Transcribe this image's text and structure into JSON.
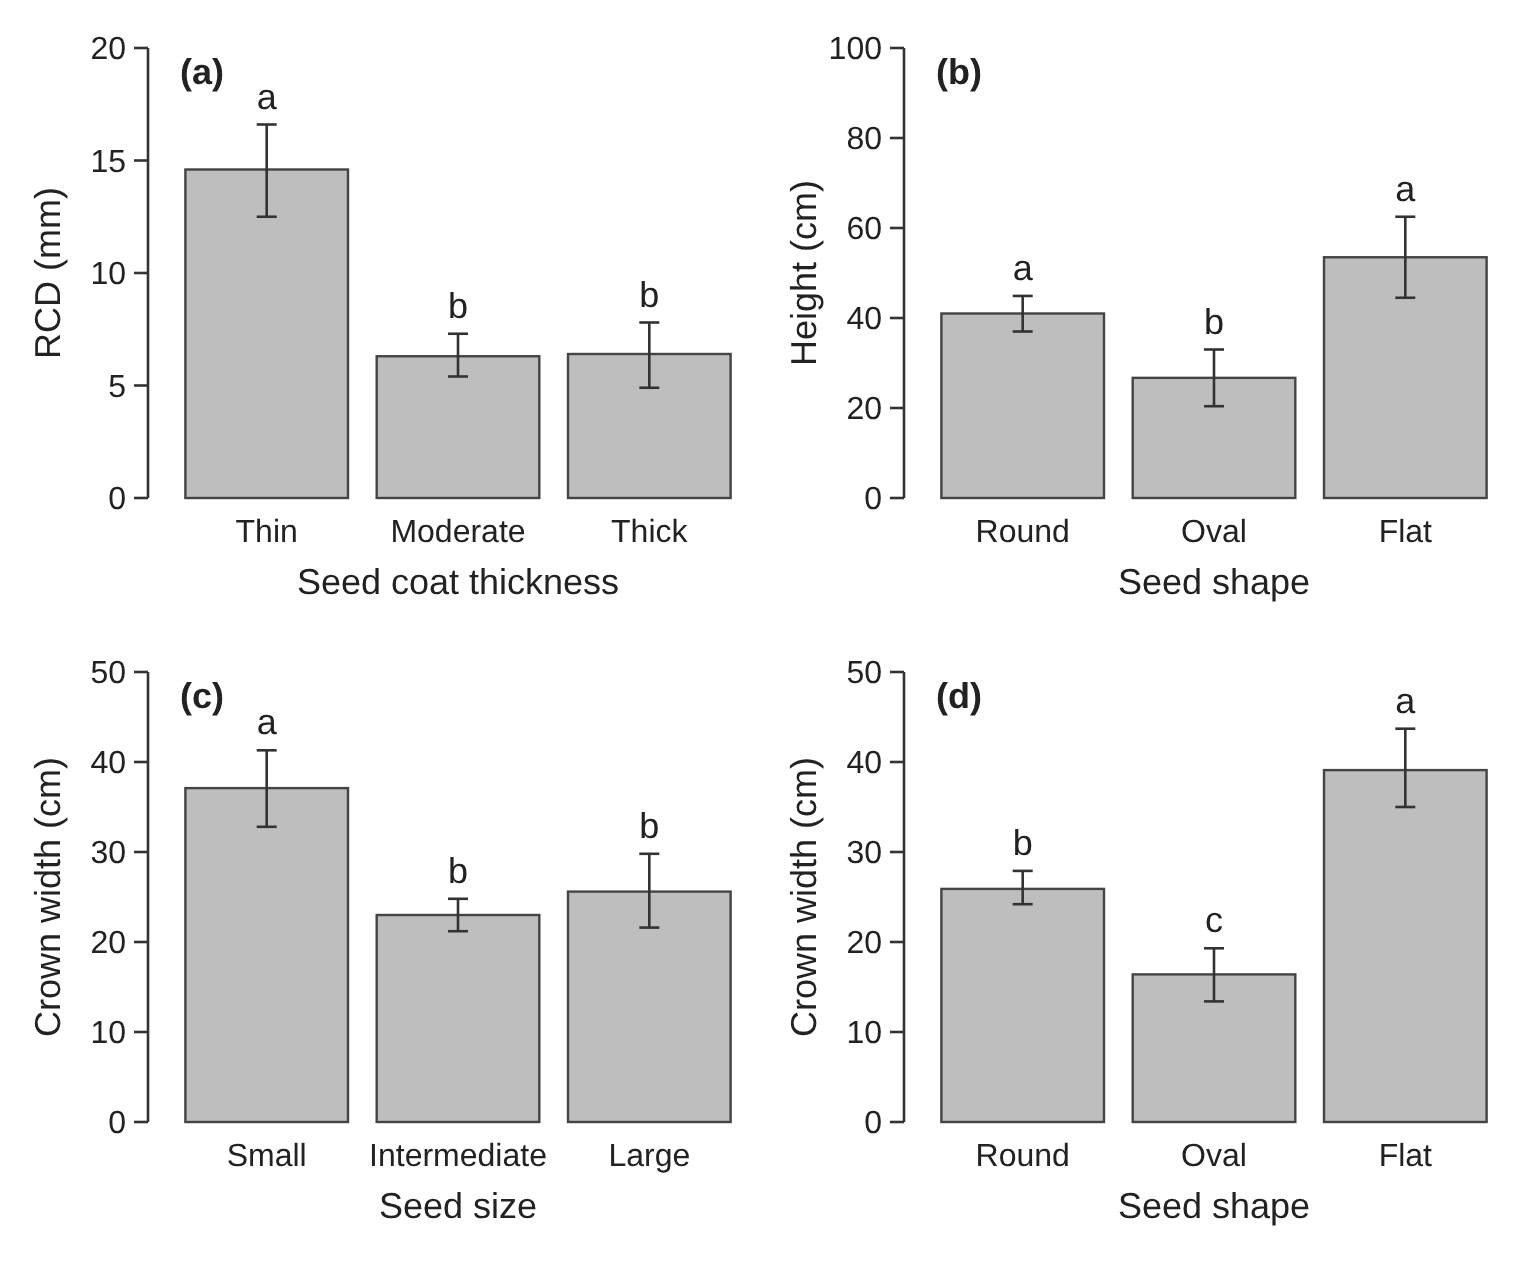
{
  "chart_data": [
    {
      "type": "bar",
      "title": "(a)",
      "xlabel": "Seed coat thickness",
      "ylabel": "RCD (mm)",
      "categories": [
        "Thin",
        "Moderate",
        "Thick"
      ],
      "values": [
        14.6,
        6.3,
        6.4
      ],
      "errors": [
        [
          12.5,
          16.6
        ],
        [
          5.4,
          7.3
        ],
        [
          4.9,
          7.8
        ]
      ],
      "color": "#bebebe",
      "ylim": [
        0,
        20
      ],
      "yticks": [
        0,
        5,
        10,
        15,
        20
      ],
      "annotations": [
        {
          "text": "a",
          "x": "Thin",
          "y": 16.6
        },
        {
          "text": "b",
          "x": "Moderate",
          "y": 7.3
        },
        {
          "text": "b",
          "x": "Thick",
          "y": 7.8
        }
      ]
    },
    {
      "type": "bar",
      "title": "(b)",
      "xlabel": "Seed shape",
      "ylabel": "Height (cm)",
      "categories": [
        "Round",
        "Oval",
        "Flat"
      ],
      "values": [
        41,
        26.7,
        53.5
      ],
      "errors": [
        [
          37,
          44.9
        ],
        [
          20.4,
          33
        ],
        [
          44.5,
          62.5
        ]
      ],
      "color": "#bebebe",
      "ylim": [
        0,
        100
      ],
      "yticks": [
        0,
        20,
        40,
        60,
        80,
        100
      ],
      "annotations": [
        {
          "text": "a",
          "x": "Round",
          "y": 44.9
        },
        {
          "text": "b",
          "x": "Oval",
          "y": 33
        },
        {
          "text": "a",
          "x": "Flat",
          "y": 62.5
        }
      ]
    },
    {
      "type": "bar",
      "title": "(c)",
      "xlabel": "Seed size",
      "ylabel": "Crown width (cm)",
      "categories": [
        "Small",
        "Intermediate",
        "Large"
      ],
      "values": [
        37.1,
        23,
        25.6
      ],
      "errors": [
        [
          32.8,
          41.3
        ],
        [
          21.2,
          24.8
        ],
        [
          21.6,
          29.8
        ]
      ],
      "color": "#bebebe",
      "ylim": [
        0,
        50
      ],
      "yticks": [
        0,
        10,
        20,
        30,
        40,
        50
      ],
      "annotations": [
        {
          "text": "a",
          "x": "Small",
          "y": 41.3
        },
        {
          "text": "b",
          "x": "Intermediate",
          "y": 24.8
        },
        {
          "text": "b",
          "x": "Large",
          "y": 29.8
        }
      ]
    },
    {
      "type": "bar",
      "title": "(d)",
      "xlabel": "Seed shape",
      "ylabel": "Crown width (cm)",
      "categories": [
        "Round",
        "Oval",
        "Flat"
      ],
      "values": [
        25.9,
        16.4,
        39.1
      ],
      "errors": [
        [
          24.2,
          27.9
        ],
        [
          13.4,
          19.3
        ],
        [
          35,
          43.7
        ]
      ],
      "color": "#bebebe",
      "ylim": [
        0,
        50
      ],
      "yticks": [
        0,
        10,
        20,
        30,
        40,
        50
      ],
      "annotations": [
        {
          "text": "b",
          "x": "Round",
          "y": 27.9
        },
        {
          "text": "c",
          "x": "Oval",
          "y": 19.3
        },
        {
          "text": "a",
          "x": "Flat",
          "y": 43.7
        }
      ]
    }
  ]
}
